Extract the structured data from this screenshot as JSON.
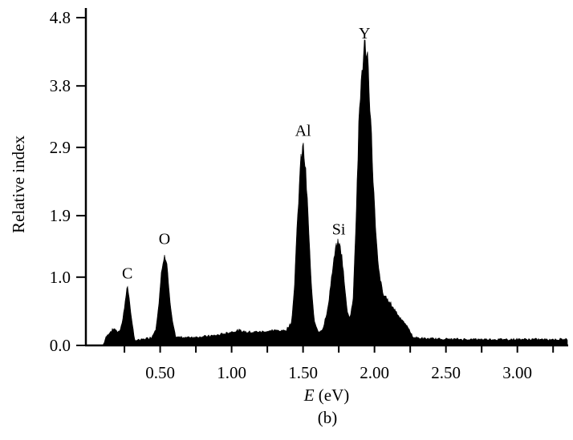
{
  "chart_data": {
    "type": "area",
    "title": "",
    "caption": "(b)",
    "xlabel_var": "E",
    "xlabel_unit": " (eV)",
    "ylabel": "Relative index",
    "xlim": [
      -0.02,
      3.35
    ],
    "ylim": [
      0,
      4.8
    ],
    "x_ticks": [
      0.25,
      0.5,
      0.75,
      1.0,
      1.25,
      1.5,
      1.75,
      2.0,
      2.25,
      2.5,
      2.75,
      3.0,
      3.25
    ],
    "x_tick_labels": [
      {
        "value": 0.5,
        "label": "0.50"
      },
      {
        "value": 1.0,
        "label": "1.00"
      },
      {
        "value": 1.5,
        "label": "1.50"
      },
      {
        "value": 2.0,
        "label": "2.00"
      },
      {
        "value": 2.5,
        "label": "2.50"
      },
      {
        "value": 3.0,
        "label": "3.00"
      }
    ],
    "y_tick_labels": [
      {
        "value": 0.0,
        "label": "0.0"
      },
      {
        "value": 1.0,
        "label": "1.0"
      },
      {
        "value": 1.9,
        "label": "1.9"
      },
      {
        "value": 2.9,
        "label": "2.9"
      },
      {
        "value": 3.8,
        "label": "3.8"
      },
      {
        "value": 4.8,
        "label": "4.8"
      }
    ],
    "grid": false,
    "fill_color": "#000000",
    "points": [
      [
        -0.02,
        0
      ],
      [
        0.1,
        0
      ],
      [
        0.12,
        0.12
      ],
      [
        0.15,
        0.2
      ],
      [
        0.18,
        0.25
      ],
      [
        0.2,
        0.2
      ],
      [
        0.22,
        0.22
      ],
      [
        0.24,
        0.4
      ],
      [
        0.26,
        0.75
      ],
      [
        0.27,
        0.86
      ],
      [
        0.28,
        0.75
      ],
      [
        0.3,
        0.4
      ],
      [
        0.32,
        0.08
      ],
      [
        0.36,
        0.08
      ],
      [
        0.4,
        0.1
      ],
      [
        0.44,
        0.12
      ],
      [
        0.47,
        0.25
      ],
      [
        0.49,
        0.6
      ],
      [
        0.51,
        1.1
      ],
      [
        0.53,
        1.37
      ],
      [
        0.55,
        1.15
      ],
      [
        0.57,
        0.6
      ],
      [
        0.59,
        0.3
      ],
      [
        0.61,
        0.12
      ],
      [
        0.7,
        0.12
      ],
      [
        0.8,
        0.13
      ],
      [
        0.9,
        0.15
      ],
      [
        1.0,
        0.2
      ],
      [
        1.05,
        0.22
      ],
      [
        1.1,
        0.2
      ],
      [
        1.2,
        0.2
      ],
      [
        1.3,
        0.22
      ],
      [
        1.38,
        0.22
      ],
      [
        1.42,
        0.35
      ],
      [
        1.44,
        0.9
      ],
      [
        1.46,
        1.8
      ],
      [
        1.48,
        2.6
      ],
      [
        1.5,
        2.95
      ],
      [
        1.52,
        2.5
      ],
      [
        1.54,
        1.7
      ],
      [
        1.56,
        0.8
      ],
      [
        1.58,
        0.35
      ],
      [
        1.61,
        0.2
      ],
      [
        1.64,
        0.25
      ],
      [
        1.67,
        0.5
      ],
      [
        1.7,
        1.0
      ],
      [
        1.73,
        1.45
      ],
      [
        1.75,
        1.51
      ],
      [
        1.77,
        1.35
      ],
      [
        1.79,
        0.9
      ],
      [
        1.81,
        0.5
      ],
      [
        1.83,
        0.4
      ],
      [
        1.85,
        0.7
      ],
      [
        1.87,
        1.8
      ],
      [
        1.89,
        3.2
      ],
      [
        1.91,
        4.0
      ],
      [
        1.93,
        4.38
      ],
      [
        1.95,
        4.3
      ],
      [
        1.97,
        3.5
      ],
      [
        1.99,
        2.5
      ],
      [
        2.01,
        1.6
      ],
      [
        2.03,
        1.1
      ],
      [
        2.06,
        0.75
      ],
      [
        2.1,
        0.65
      ],
      [
        2.15,
        0.5
      ],
      [
        2.2,
        0.35
      ],
      [
        2.24,
        0.25
      ],
      [
        2.27,
        0.12
      ],
      [
        2.35,
        0.1
      ],
      [
        2.6,
        0.09
      ],
      [
        3.0,
        0.09
      ],
      [
        3.35,
        0.09
      ]
    ],
    "annotations": [
      {
        "label": "C",
        "x": 0.27,
        "y": 0.86
      },
      {
        "label": "O",
        "x": 0.53,
        "y": 1.37
      },
      {
        "label": "Al",
        "x": 1.5,
        "y": 2.95
      },
      {
        "label": "Si",
        "x": 1.75,
        "y": 1.51
      },
      {
        "label": "Y",
        "x": 1.93,
        "y": 4.38
      }
    ]
  }
}
